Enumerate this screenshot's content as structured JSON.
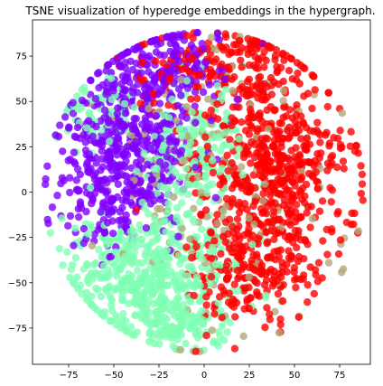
{
  "chart_data": {
    "type": "scatter",
    "title": "TSNE visualization of hyperedge embeddings in the hypergraph.",
    "xlabel": "",
    "ylabel": "",
    "xlim": [
      -95,
      92
    ],
    "ylim": [
      -95,
      95
    ],
    "grid": false,
    "x_ticks": [
      -75,
      -50,
      -25,
      0,
      25,
      50,
      75
    ],
    "y_ticks": [
      -75,
      -50,
      -25,
      0,
      25,
      50,
      75
    ],
    "x_tick_labels": [
      "−75",
      "−50",
      "−25",
      "0",
      "25",
      "50",
      "75"
    ],
    "y_tick_labels": [
      "−75",
      "−50",
      "−25",
      "0",
      "25",
      "50",
      "75"
    ],
    "series_colors": {
      "purple": "#8000ff",
      "green": "#80ffb4",
      "red": "#ff0000",
      "mixed_overlap": "#b5a87a"
    },
    "point_alpha": 0.8,
    "clusters": [
      {
        "color": "#8000ff",
        "count": 420,
        "center": [
          -40,
          30
        ],
        "spread": [
          18,
          22
        ]
      },
      {
        "color": "#8000ff",
        "count": 160,
        "center": [
          -20,
          70
        ],
        "spread": [
          18,
          12
        ]
      },
      {
        "color": "#8000ff",
        "count": 120,
        "center": [
          -55,
          -5
        ],
        "spread": [
          15,
          15
        ]
      },
      {
        "color": "#80ffb4",
        "count": 480,
        "center": [
          -30,
          -45
        ],
        "spread": [
          22,
          18
        ]
      },
      {
        "color": "#80ffb4",
        "count": 200,
        "center": [
          -5,
          20
        ],
        "spread": [
          14,
          20
        ]
      },
      {
        "color": "#80ffb4",
        "count": 90,
        "center": [
          -10,
          -75
        ],
        "spread": [
          14,
          8
        ]
      },
      {
        "color": "#80ffb4",
        "count": 60,
        "center": [
          -60,
          45
        ],
        "spread": [
          12,
          10
        ]
      },
      {
        "color": "#ff0000",
        "count": 520,
        "center": [
          40,
          15
        ],
        "spread": [
          20,
          25
        ]
      },
      {
        "color": "#ff0000",
        "count": 220,
        "center": [
          25,
          -40
        ],
        "spread": [
          18,
          18
        ]
      },
      {
        "color": "#ff0000",
        "count": 120,
        "center": [
          20,
          70
        ],
        "spread": [
          18,
          12
        ]
      },
      {
        "color": "#ff0000",
        "count": 60,
        "center": [
          -15,
          65
        ],
        "spread": [
          15,
          12
        ]
      },
      {
        "color": "#b5a87a",
        "count": 160,
        "center": [
          10,
          5
        ],
        "spread": [
          35,
          35
        ]
      }
    ]
  }
}
